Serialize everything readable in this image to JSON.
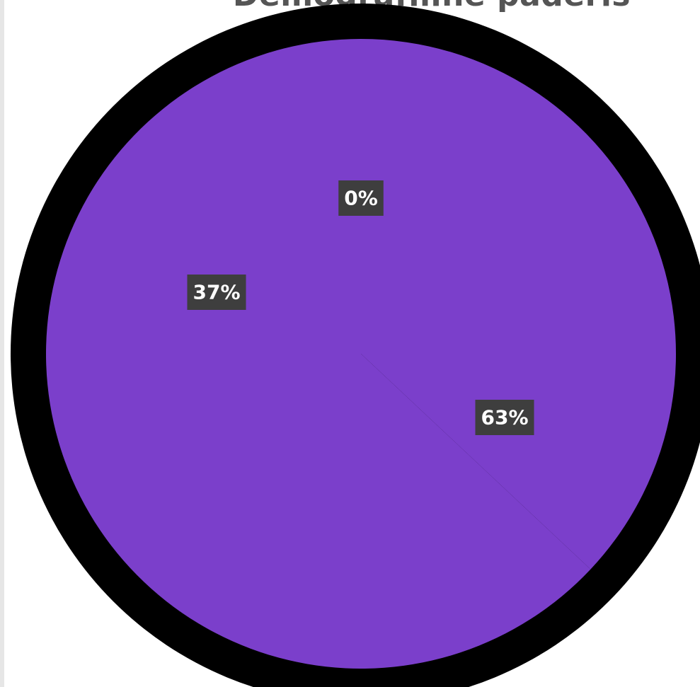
{
  "chart_data": {
    "type": "pie",
    "title": "Demografiline paderis",
    "slices": [
      {
        "value": 0,
        "label": "0%"
      },
      {
        "value": 37,
        "label": "37%"
      },
      {
        "value": 63,
        "label": "63%"
      }
    ],
    "colors": {
      "slice_fill": "#7b3fcb",
      "outline": "#000000",
      "label_background": "#3e3e3e",
      "label_text": "#ffffff",
      "title_text": "#555555"
    }
  }
}
